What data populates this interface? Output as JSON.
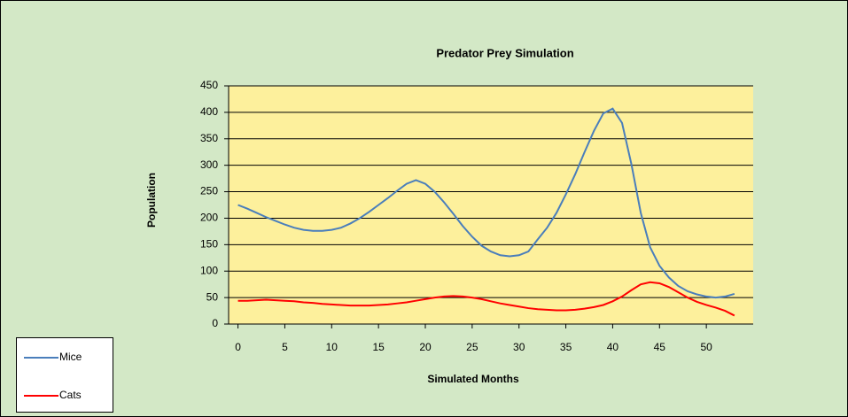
{
  "chart_data": {
    "type": "line",
    "title": "Predator Prey Simulation",
    "x_label": "Simulated Months",
    "y_label": "Population",
    "x": [
      0,
      1,
      2,
      3,
      4,
      5,
      6,
      7,
      8,
      9,
      10,
      11,
      12,
      13,
      14,
      15,
      16,
      17,
      18,
      19,
      20,
      21,
      22,
      23,
      24,
      25,
      26,
      27,
      28,
      29,
      30,
      31,
      32,
      33,
      34,
      35,
      36,
      37,
      38,
      39,
      40,
      41,
      42,
      43,
      44,
      45,
      46,
      47,
      48,
      49,
      50,
      51,
      52,
      53
    ],
    "series": [
      {
        "name": "Mice",
        "color": "#4a7ebb",
        "values": [
          225,
          218,
          210,
          202,
          195,
          188,
          182,
          178,
          176,
          176,
          178,
          182,
          190,
          200,
          212,
          225,
          238,
          252,
          265,
          272,
          265,
          250,
          230,
          208,
          185,
          165,
          148,
          137,
          130,
          128,
          130,
          137,
          160,
          182,
          210,
          245,
          283,
          325,
          365,
          398,
          407,
          380,
          302,
          210,
          145,
          110,
          88,
          72,
          62,
          56,
          52,
          50,
          52,
          57
        ]
      },
      {
        "name": "Cats",
        "color": "#ff0000",
        "values": [
          44,
          44,
          45,
          46,
          45,
          44,
          43,
          41,
          40,
          38,
          37,
          36,
          35,
          35,
          35,
          36,
          37,
          39,
          41,
          44,
          47,
          50,
          52,
          53,
          52,
          50,
          47,
          43,
          39,
          36,
          33,
          30,
          28,
          27,
          26,
          26,
          27,
          29,
          32,
          36,
          43,
          52,
          64,
          75,
          79,
          77,
          70,
          60,
          50,
          42,
          36,
          31,
          25,
          16
        ]
      }
    ],
    "xlim": [
      -1,
      55
    ],
    "xticks": [
      0,
      5,
      10,
      15,
      20,
      25,
      30,
      35,
      40,
      45,
      50
    ],
    "ylim": [
      0,
      450
    ],
    "yticks": [
      0,
      50,
      100,
      150,
      200,
      250,
      300,
      350,
      400,
      450
    ],
    "grid": true,
    "legend": "bottom-left"
  }
}
